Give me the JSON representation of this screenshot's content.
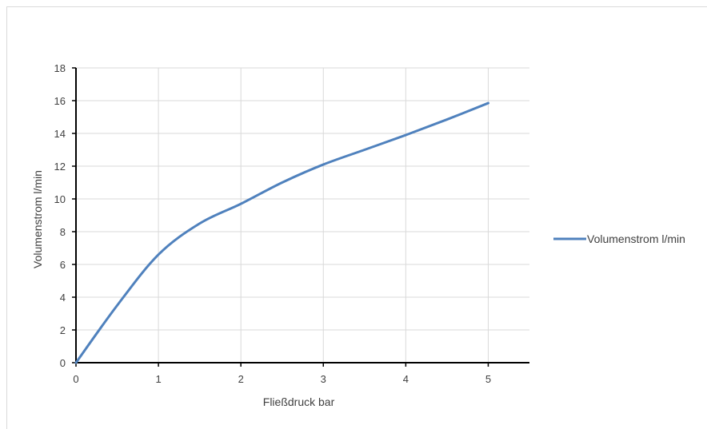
{
  "chart_data": {
    "type": "line",
    "xlabel": "Fließdruck bar",
    "ylabel": "Volumenstrom l/min",
    "xlim": [
      0,
      5.5
    ],
    "ylim": [
      0,
      18
    ],
    "xticks": [
      0,
      1,
      2,
      3,
      4,
      5
    ],
    "yticks": [
      0,
      2,
      4,
      6,
      8,
      10,
      12,
      14,
      16,
      18
    ],
    "grid": true,
    "legend_position": "right",
    "series": [
      {
        "name": "Volumenstrom l/min",
        "color": "#4f81bd",
        "x": [
          0,
          0.5,
          1,
          1.5,
          2,
          2.5,
          3,
          3.5,
          4,
          4.5,
          5
        ],
        "y": [
          0,
          3.5,
          6.6,
          8.5,
          9.7,
          11.0,
          12.1,
          13.0,
          13.9,
          14.85,
          15.85
        ]
      }
    ]
  }
}
